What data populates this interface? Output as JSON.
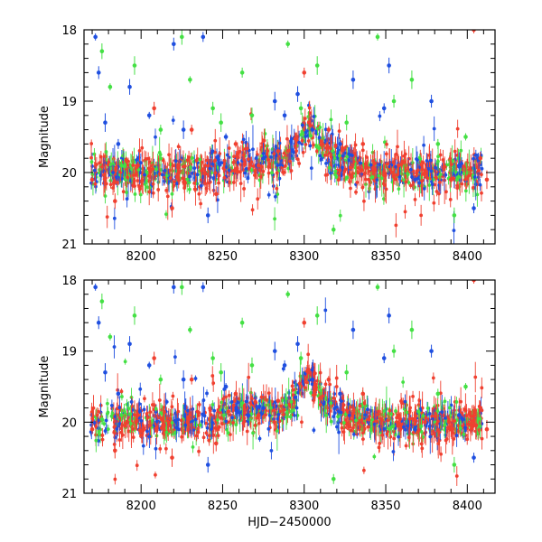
{
  "chart_data": [
    {
      "type": "scatter",
      "panel": "top",
      "xlabel": "",
      "ylabel": "Magnitude",
      "xlim": [
        8165,
        8417
      ],
      "ylim": [
        21,
        18
      ],
      "y_inverted": true,
      "xticks": [
        8200,
        8250,
        8300,
        8350,
        8400
      ],
      "yticks": [
        18,
        19,
        20,
        21
      ],
      "grid": false,
      "error_bars": true,
      "series": [
        {
          "color": "#1f4fe0",
          "x": [
            8172,
            8174,
            8178,
            8186,
            8193,
            8205,
            8220,
            8226,
            8238,
            8241,
            8252,
            8275,
            8282,
            8288,
            8296,
            8305,
            8322,
            8330,
            8349,
            8352,
            8368,
            8378,
            8395,
            8404
          ],
          "y": [
            18.1,
            18.6,
            19.3,
            19.6,
            18.8,
            19.2,
            18.2,
            19.4,
            18.1,
            20.6,
            19.5,
            19.8,
            19.0,
            19.2,
            18.9,
            19.4,
            19.6,
            18.7,
            19.1,
            18.5,
            20.1,
            19.0,
            19.9,
            20.5
          ]
        },
        {
          "color": "#44e044",
          "x": [
            8176,
            8181,
            8188,
            8196,
            8212,
            8225,
            8230,
            8244,
            8249,
            8262,
            8268,
            8290,
            8298,
            8308,
            8318,
            8326,
            8345,
            8355,
            8366,
            8382,
            8392,
            8399
          ],
          "y": [
            18.3,
            18.8,
            19.9,
            18.5,
            19.4,
            18.1,
            18.7,
            19.1,
            19.3,
            18.6,
            19.2,
            18.2,
            19.1,
            18.5,
            20.8,
            19.3,
            18.1,
            19.0,
            18.7,
            19.6,
            20.6,
            19.5
          ]
        },
        {
          "color": "#f04030",
          "x": [
            8170,
            8184,
            8198,
            8208,
            8219,
            8231,
            8246,
            8258,
            8272,
            8284,
            8300,
            8303,
            8315,
            8336,
            8358,
            8374,
            8390,
            8404,
            8408,
            8412
          ],
          "y": [
            20.1,
            20.4,
            19.9,
            19.1,
            20.5,
            19.4,
            20.3,
            19.6,
            19.9,
            19.7,
            18.6,
            19.3,
            19.4,
            19.6,
            19.9,
            20.0,
            20.1,
            18.0,
            19.8,
            20.1
          ]
        }
      ]
    },
    {
      "type": "scatter",
      "panel": "bottom",
      "xlabel": "HJD−2450000",
      "ylabel": "Magnitude",
      "xlim": [
        8165,
        8417
      ],
      "ylim": [
        21,
        18
      ],
      "y_inverted": true,
      "xticks": [
        8200,
        8250,
        8300,
        8350,
        8400
      ],
      "yticks": [
        18,
        19,
        20,
        21
      ],
      "grid": false,
      "error_bars": true,
      "series": [
        {
          "color": "#1f4fe0",
          "x": [
            8172,
            8174,
            8178,
            8186,
            8193,
            8205,
            8220,
            8226,
            8238,
            8241,
            8252,
            8275,
            8282,
            8288,
            8296,
            8305,
            8322,
            8330,
            8349,
            8352,
            8368,
            8378,
            8395,
            8404
          ],
          "y": [
            18.1,
            18.6,
            19.3,
            19.6,
            18.9,
            19.2,
            18.1,
            19.4,
            18.1,
            20.6,
            19.5,
            19.8,
            19.0,
            19.2,
            18.9,
            19.4,
            19.6,
            18.7,
            19.1,
            18.5,
            20.1,
            19.0,
            19.9,
            20.5
          ]
        },
        {
          "color": "#44e044",
          "x": [
            8176,
            8181,
            8188,
            8196,
            8212,
            8225,
            8230,
            8244,
            8249,
            8262,
            8268,
            8290,
            8298,
            8308,
            8318,
            8326,
            8345,
            8355,
            8366,
            8382,
            8392,
            8399
          ],
          "y": [
            18.3,
            18.8,
            19.9,
            18.5,
            19.4,
            18.1,
            18.7,
            19.1,
            19.3,
            18.6,
            19.2,
            18.2,
            19.1,
            18.5,
            20.8,
            19.3,
            18.1,
            19.0,
            18.7,
            19.6,
            20.6,
            19.5
          ]
        },
        {
          "color": "#f04030",
          "x": [
            8170,
            8184,
            8198,
            8208,
            8219,
            8231,
            8246,
            8258,
            8272,
            8284,
            8300,
            8303,
            8315,
            8336,
            8358,
            8374,
            8390,
            8404,
            8408,
            8412
          ],
          "y": [
            20.1,
            20.4,
            19.9,
            19.1,
            20.5,
            19.4,
            20.3,
            19.6,
            19.9,
            19.7,
            18.6,
            19.3,
            19.4,
            19.6,
            19.9,
            20.0,
            20.1,
            18.0,
            19.8,
            20.1
          ]
        }
      ]
    }
  ]
}
